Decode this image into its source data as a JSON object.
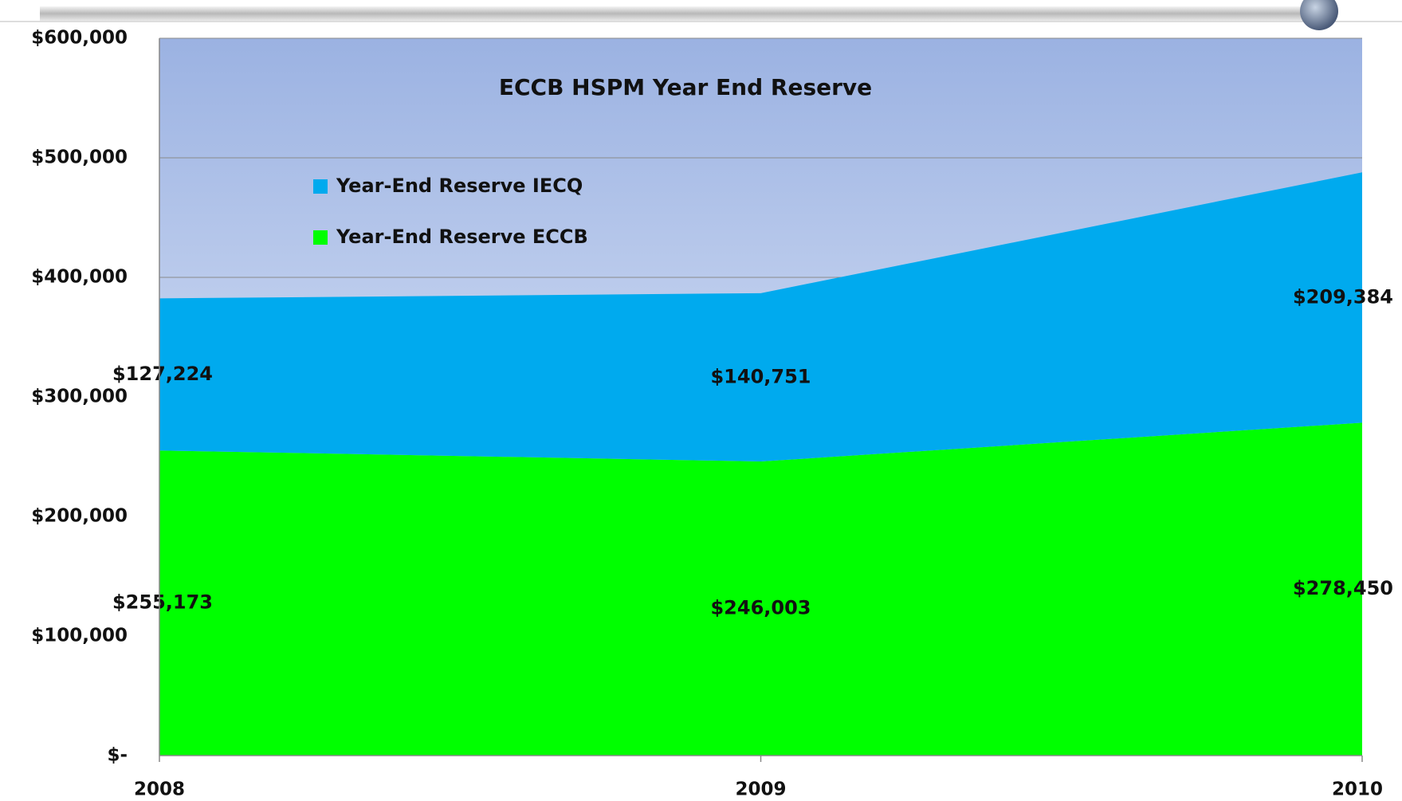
{
  "chart_data": {
    "type": "stacked_area",
    "title": "ECCB HSPM Year End Reserve",
    "categories": [
      "2008",
      "2009",
      "2010"
    ],
    "series": [
      {
        "name": "Year-End Reserve ECCB",
        "color": "#00ff00",
        "values": [
          255173,
          246003,
          278450
        ],
        "value_labels": [
          "$255,173",
          "$246,003",
          "$278,450"
        ]
      },
      {
        "name": "Year-End Reserve IECQ",
        "color": "#00aaee",
        "values": [
          127224,
          140751,
          209384
        ],
        "value_labels": [
          "$127,224",
          "$140,751",
          "$209,384"
        ]
      }
    ],
    "ylim": [
      0,
      600000
    ],
    "yticks": [
      {
        "value": 0,
        "label": "$-"
      },
      {
        "value": 100000,
        "label": "$100,000"
      },
      {
        "value": 200000,
        "label": "$200,000"
      },
      {
        "value": 300000,
        "label": "$300,000"
      },
      {
        "value": 400000,
        "label": "$400,000"
      },
      {
        "value": 500000,
        "label": "$500,000"
      },
      {
        "value": 600000,
        "label": "$600,000"
      }
    ],
    "grid": true
  }
}
